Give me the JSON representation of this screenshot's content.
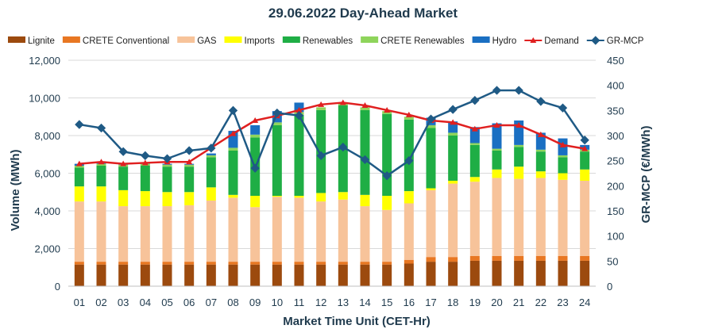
{
  "chart_data": {
    "type": "bar",
    "title": "29.06.2022  Day-Ahead Market",
    "xlabel": "Market Time Unit (CET-Hr)",
    "ylabel": "Volume (MWh)",
    "y2label": "GR-MCP (€/MWh)",
    "ylim": [
      0,
      12000
    ],
    "y2lim": [
      0,
      450
    ],
    "yticks": [
      "0",
      "2,000",
      "4,000",
      "6,000",
      "8,000",
      "10,000",
      "12,000"
    ],
    "y2ticks": [
      "0",
      "50",
      "100",
      "150",
      "200",
      "250",
      "300",
      "350",
      "400",
      "450"
    ],
    "categories": [
      "01",
      "02",
      "03",
      "04",
      "05",
      "06",
      "07",
      "08",
      "09",
      "10",
      "11",
      "12",
      "13",
      "14",
      "15",
      "16",
      "17",
      "18",
      "19",
      "20",
      "21",
      "22",
      "23",
      "24"
    ],
    "grid": true,
    "legend_position": "top",
    "series": [
      {
        "name": "Lignite",
        "kind": "stack",
        "color": "#9c4a0e",
        "values": [
          1150,
          1150,
          1150,
          1150,
          1150,
          1150,
          1150,
          1150,
          1150,
          1150,
          1150,
          1150,
          1150,
          1150,
          1150,
          1200,
          1300,
          1300,
          1350,
          1350,
          1350,
          1350,
          1350,
          1350
        ]
      },
      {
        "name": "CRETE Conventional",
        "kind": "stack",
        "color": "#e87722",
        "values": [
          150,
          150,
          150,
          150,
          150,
          150,
          150,
          150,
          150,
          150,
          150,
          150,
          150,
          150,
          150,
          200,
          250,
          250,
          250,
          250,
          250,
          250,
          250,
          250
        ]
      },
      {
        "name": "GAS",
        "kind": "stack",
        "color": "#f7c39a",
        "values": [
          3200,
          3200,
          2950,
          2950,
          2950,
          3000,
          3250,
          3400,
          2900,
          3450,
          3400,
          3200,
          3300,
          2950,
          2750,
          3000,
          3550,
          3900,
          3950,
          4150,
          4100,
          4150,
          4050,
          4000
        ]
      },
      {
        "name": "Imports",
        "kind": "stack",
        "color": "#ffff00",
        "values": [
          800,
          800,
          850,
          800,
          750,
          700,
          700,
          150,
          600,
          50,
          100,
          450,
          400,
          600,
          750,
          650,
          100,
          150,
          250,
          450,
          650,
          350,
          350,
          600
        ]
      },
      {
        "name": "Renewables",
        "kind": "stack",
        "color": "#1fae45",
        "values": [
          1000,
          1100,
          1250,
          1350,
          1350,
          1350,
          1600,
          2350,
          3100,
          3750,
          4300,
          4400,
          4600,
          4500,
          4350,
          3800,
          3200,
          2400,
          1700,
          1000,
          1050,
          1050,
          850,
          950
        ]
      },
      {
        "name": "CRETE Renewables",
        "kind": "stack",
        "color": "#8ed45b",
        "values": [
          100,
          100,
          100,
          100,
          100,
          100,
          100,
          150,
          150,
          150,
          150,
          150,
          150,
          150,
          150,
          150,
          150,
          150,
          100,
          100,
          100,
          100,
          100,
          100
        ]
      },
      {
        "name": "Hydro",
        "kind": "stack",
        "color": "#1a6fc2",
        "values": [
          100,
          100,
          50,
          50,
          50,
          50,
          100,
          900,
          500,
          600,
          500,
          0,
          0,
          0,
          0,
          0,
          400,
          600,
          850,
          1350,
          1300,
          900,
          900,
          250
        ]
      },
      {
        "name": "Demand",
        "kind": "line",
        "color": "#e02020",
        "values": [
          6500,
          6600,
          6500,
          6550,
          6600,
          6600,
          7350,
          8100,
          8800,
          9050,
          9350,
          9650,
          9750,
          9600,
          9350,
          9100,
          8800,
          8700,
          8350,
          8550,
          8550,
          8050,
          7500,
          7300
        ]
      },
      {
        "name": "GR-MCP",
        "kind": "line-secondary",
        "color": "#1f5a85",
        "values": [
          322,
          315,
          268,
          260,
          254,
          270,
          275,
          350,
          235,
          345,
          340,
          260,
          277,
          252,
          220,
          250,
          333,
          352,
          370,
          390,
          390,
          368,
          355,
          291
        ]
      }
    ]
  }
}
